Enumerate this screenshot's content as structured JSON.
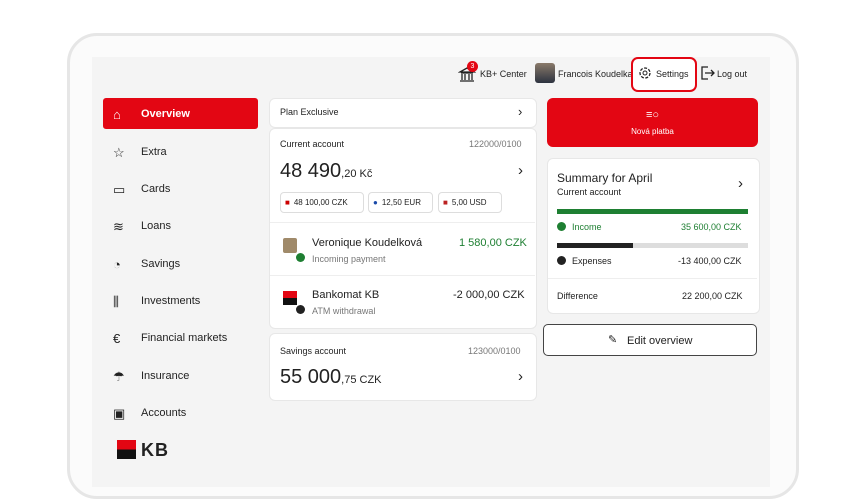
{
  "header": {
    "badge": "3",
    "kb_center": "KB+ Center",
    "user": "Francois Koudelka",
    "settings": "Settings",
    "logout": "Log out"
  },
  "nav": {
    "items": [
      "Overview",
      "Extra",
      "Cards",
      "Loans",
      "Savings",
      "Investments",
      "Financial markets",
      "Insurance",
      "Accounts"
    ],
    "logo": "KB"
  },
  "plan": "Plan Exclusive",
  "current_account": {
    "label": "Current account",
    "number": "122000/0100",
    "balance_main": "48 490",
    "balance_dec": ",20 Kč",
    "currencies": [
      "48 100,00 CZK",
      "12,50 EUR",
      "5,00 USD"
    ],
    "transactions": [
      {
        "name": "Veronique Koudelková",
        "amount": "1 580,00 CZK",
        "type": "Incoming payment"
      },
      {
        "name": "Bankomat KB",
        "amount": "-2 000,00 CZK",
        "type": "ATM withdrawal"
      }
    ]
  },
  "savings_account": {
    "label": "Savings account",
    "number": "123000/0100",
    "balance_main": "55 000",
    "balance_dec": ",75 CZK"
  },
  "new_payment": "Nová platba",
  "summary": {
    "title": "Summary for April",
    "subtitle": "Current account",
    "income_label": "Income",
    "income": "35 600,00 CZK",
    "expenses_label": "Expenses",
    "expenses": "-13 400,00 CZK",
    "difference_label": "Difference",
    "difference": "22 200,00 CZK"
  },
  "edit": "Edit overview"
}
